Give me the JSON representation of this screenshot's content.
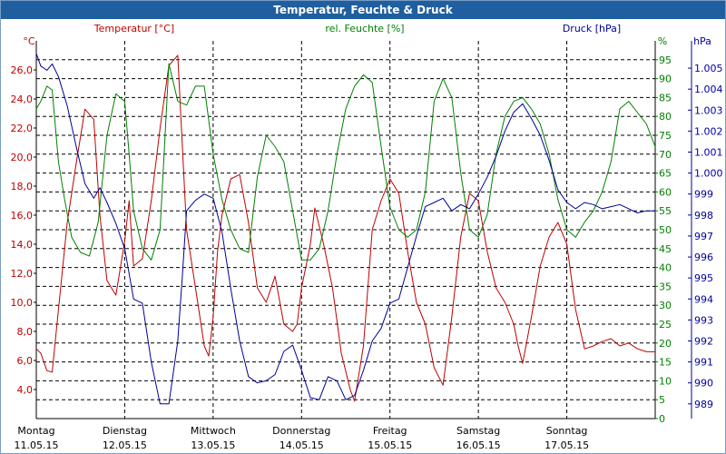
{
  "window": {
    "title": "Temperatur, Feuchte & Druck"
  },
  "colors": {
    "temperature": "#c00000",
    "humidity": "#008000",
    "pressure": "#00009a",
    "grid": "#000000"
  },
  "chart_data": {
    "type": "line",
    "title": "Temperatur, Feuchte & Druck",
    "x_range": [
      0,
      7
    ],
    "days": [
      {
        "name": "Montag",
        "date": "11.05.15"
      },
      {
        "name": "Dienstag",
        "date": "12.05.15"
      },
      {
        "name": "Mittwoch",
        "date": "13.05.15"
      },
      {
        "name": "Donnerstag",
        "date": "14.05.15"
      },
      {
        "name": "Freitag",
        "date": "15.05.15"
      },
      {
        "name": "Samstag",
        "date": "16.05.15"
      },
      {
        "name": "Sonntag",
        "date": "17.05.15"
      }
    ],
    "axes": {
      "temperature": {
        "label": "Temperatur [°C]",
        "unit": "°C",
        "ylim": [
          2,
          28
        ],
        "ticks": [
          "4,0",
          "6,0",
          "8,0",
          "10,0",
          "12,0",
          "14,0",
          "16,0",
          "18,0",
          "20,0",
          "22,0",
          "24,0",
          "26,0"
        ],
        "tick_values": [
          4,
          6,
          8,
          10,
          12,
          14,
          16,
          18,
          20,
          22,
          24,
          26
        ]
      },
      "humidity": {
        "label": "rel. Feuchte [%]",
        "unit": "%",
        "ylim": [
          0,
          100
        ],
        "ticks": [
          "0",
          "5",
          "10",
          "15",
          "20",
          "25",
          "30",
          "35",
          "40",
          "45",
          "50",
          "55",
          "60",
          "65",
          "70",
          "75",
          "80",
          "85",
          "90",
          "95"
        ],
        "tick_values": [
          0,
          5,
          10,
          15,
          20,
          25,
          30,
          35,
          40,
          45,
          50,
          55,
          60,
          65,
          70,
          75,
          80,
          85,
          90,
          95
        ]
      },
      "pressure": {
        "label": "Druck [hPa]",
        "unit": "hPa",
        "ylim": [
          988.3,
          1006.3
        ],
        "ticks": [
          "989",
          "990",
          "991",
          "992",
          "993",
          "994",
          "995",
          "996",
          "997",
          "998",
          "999",
          "1.000",
          "1.001",
          "1.002",
          "1.003",
          "1.004",
          "1.005"
        ],
        "tick_values": [
          989,
          990,
          991,
          992,
          993,
          994,
          995,
          996,
          997,
          998,
          999,
          1000,
          1001,
          1002,
          1003,
          1004,
          1005
        ]
      }
    },
    "series": [
      {
        "name": "Temperatur",
        "axis": "temperature",
        "x": [
          0,
          0.05,
          0.12,
          0.18,
          0.25,
          0.35,
          0.45,
          0.55,
          0.65,
          0.72,
          0.8,
          0.9,
          1.0,
          1.05,
          1.1,
          1.2,
          1.3,
          1.4,
          1.5,
          1.6,
          1.7,
          1.8,
          1.9,
          1.95,
          2.0,
          2.05,
          2.1,
          2.2,
          2.3,
          2.4,
          2.5,
          2.6,
          2.7,
          2.8,
          2.9,
          2.95,
          3.0,
          3.05,
          3.1,
          3.15,
          3.25,
          3.35,
          3.45,
          3.55,
          3.6,
          3.7,
          3.8,
          3.9,
          4.0,
          4.1,
          4.2,
          4.3,
          4.4,
          4.5,
          4.6,
          4.7,
          4.8,
          4.9,
          5.0,
          5.1,
          5.2,
          5.3,
          5.4,
          5.45,
          5.5,
          5.6,
          5.7,
          5.8,
          5.9,
          6.0,
          6.1,
          6.2,
          6.3,
          6.4,
          6.5,
          6.6,
          6.7,
          6.8,
          6.9,
          7.0
        ],
        "values": [
          6.8,
          6.5,
          5.3,
          5.2,
          9.5,
          15.5,
          19.5,
          23.3,
          22.6,
          16.0,
          11.5,
          10.5,
          14.2,
          17.0,
          12.5,
          13.0,
          17.0,
          22.0,
          26.3,
          27.0,
          15.0,
          11.0,
          7.0,
          6.3,
          9.0,
          13.5,
          16.0,
          18.5,
          18.8,
          15.5,
          11.0,
          10.0,
          11.8,
          8.5,
          8.0,
          8.5,
          11.0,
          12.5,
          14.0,
          16.5,
          14.0,
          11.0,
          6.5,
          4.0,
          3.2,
          7.0,
          15.0,
          17.0,
          18.5,
          17.5,
          13.5,
          10.0,
          8.5,
          5.5,
          4.3,
          9.0,
          14.5,
          17.5,
          17.0,
          13.5,
          11.0,
          10.0,
          8.5,
          7.0,
          5.8,
          9.0,
          12.5,
          14.5,
          15.5,
          14.0,
          9.5,
          6.8,
          7.0,
          7.3,
          7.5,
          7.0,
          7.2,
          6.8,
          6.6,
          6.6
        ]
      },
      {
        "name": "rel. Feuchte",
        "axis": "humidity",
        "x": [
          0,
          0.05,
          0.12,
          0.18,
          0.25,
          0.32,
          0.4,
          0.5,
          0.6,
          0.7,
          0.8,
          0.9,
          1.0,
          1.05,
          1.1,
          1.2,
          1.3,
          1.4,
          1.5,
          1.6,
          1.7,
          1.8,
          1.9,
          2.0,
          2.1,
          2.2,
          2.3,
          2.4,
          2.5,
          2.6,
          2.7,
          2.8,
          2.9,
          3.0,
          3.1,
          3.2,
          3.3,
          3.4,
          3.5,
          3.6,
          3.7,
          3.8,
          3.9,
          4.0,
          4.1,
          4.2,
          4.3,
          4.4,
          4.5,
          4.6,
          4.7,
          4.8,
          4.9,
          5.0,
          5.1,
          5.2,
          5.3,
          5.4,
          5.5,
          5.6,
          5.7,
          5.8,
          5.9,
          6.0,
          6.1,
          6.2,
          6.3,
          6.4,
          6.5,
          6.6,
          6.7,
          6.8,
          6.9,
          7.0
        ],
        "values": [
          82,
          84,
          88,
          87,
          68,
          58,
          48,
          44,
          43,
          52,
          75,
          86,
          84,
          70,
          55,
          45,
          42,
          50,
          94,
          84,
          83,
          88,
          88,
          70,
          58,
          50,
          45,
          44,
          64,
          75,
          72,
          68,
          55,
          42,
          42,
          45,
          55,
          70,
          82,
          88,
          91,
          89,
          72,
          56,
          50,
          48,
          50,
          60,
          84,
          90,
          85,
          65,
          50,
          48,
          54,
          70,
          80,
          84,
          85,
          82,
          78,
          70,
          58,
          50,
          48,
          52,
          55,
          60,
          68,
          82,
          84,
          81,
          78,
          72
        ]
      },
      {
        "name": "Druck",
        "axis": "pressure",
        "x": [
          0,
          0.05,
          0.12,
          0.18,
          0.25,
          0.35,
          0.45,
          0.55,
          0.65,
          0.72,
          0.8,
          0.9,
          1.0,
          1.1,
          1.2,
          1.3,
          1.4,
          1.5,
          1.55,
          1.6,
          1.65,
          1.7,
          1.8,
          1.9,
          2.0,
          2.1,
          2.2,
          2.3,
          2.4,
          2.5,
          2.6,
          2.7,
          2.8,
          2.9,
          3.0,
          3.1,
          3.2,
          3.3,
          3.4,
          3.5,
          3.6,
          3.7,
          3.8,
          3.9,
          4.0,
          4.1,
          4.2,
          4.3,
          4.4,
          4.5,
          4.6,
          4.7,
          4.8,
          4.9,
          5.0,
          5.1,
          5.2,
          5.3,
          5.4,
          5.5,
          5.6,
          5.7,
          5.8,
          5.9,
          6.0,
          6.1,
          6.2,
          6.3,
          6.4,
          6.5,
          6.6,
          6.7,
          6.8,
          6.9,
          7.0
        ],
        "values": [
          1005.7,
          1005.1,
          1004.9,
          1005.2,
          1004.6,
          1003.2,
          1001.3,
          999.5,
          998.8,
          999.3,
          998.6,
          997.6,
          996.4,
          994.0,
          993.8,
          991.0,
          989.0,
          989.0,
          990.5,
          992.0,
          995.0,
          998.2,
          998.7,
          999.0,
          998.8,
          997.2,
          994.5,
          992.0,
          990.3,
          990.0,
          990.1,
          990.4,
          991.5,
          991.8,
          990.6,
          989.3,
          989.2,
          990.3,
          990.1,
          989.2,
          989.4,
          990.6,
          992.0,
          992.6,
          993.8,
          994.0,
          995.5,
          997.0,
          998.4,
          998.6,
          998.8,
          998.2,
          998.5,
          998.3,
          999.0,
          999.8,
          1000.8,
          1002.0,
          1002.9,
          1003.3,
          1002.6,
          1001.8,
          1000.6,
          999.2,
          998.6,
          998.3,
          998.6,
          998.5,
          998.3,
          998.4,
          998.5,
          998.3,
          998.1,
          998.2,
          998.2
        ]
      }
    ]
  }
}
